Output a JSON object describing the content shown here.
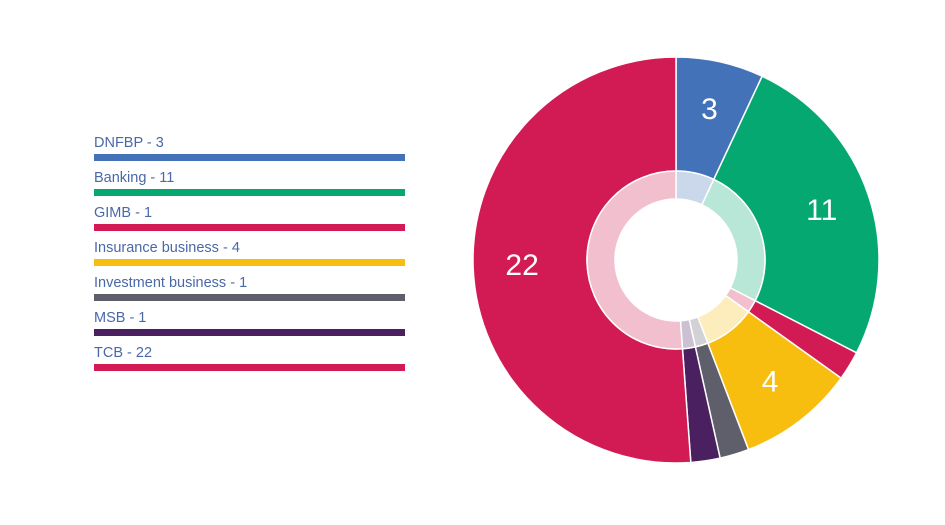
{
  "chart_data": {
    "type": "pie",
    "variant": "donut",
    "series": [
      {
        "label": "DNFBP - 3",
        "category": "DNFBP",
        "value": 3,
        "color": "#4472b8",
        "show_value": true
      },
      {
        "label": "Banking - 11",
        "category": "Banking",
        "value": 11,
        "color": "#04a870",
        "show_value": true
      },
      {
        "label": "GIMB - 1",
        "category": "GIMB",
        "value": 1,
        "color": "#d21a55",
        "show_value": false
      },
      {
        "label": "Insurance business - 4",
        "category": "Insurance business",
        "value": 4,
        "color": "#f7be10",
        "show_value": true
      },
      {
        "label": "Investment business - 1",
        "category": "Investment business",
        "value": 1,
        "color": "#5f5f6b",
        "show_value": false
      },
      {
        "label": "MSB - 1",
        "category": "MSB",
        "value": 1,
        "color": "#4a2060",
        "show_value": false
      },
      {
        "label": "TCB - 22",
        "category": "TCB",
        "value": 22,
        "color": "#d21a55",
        "show_value": true
      }
    ],
    "legend_position": "left"
  }
}
